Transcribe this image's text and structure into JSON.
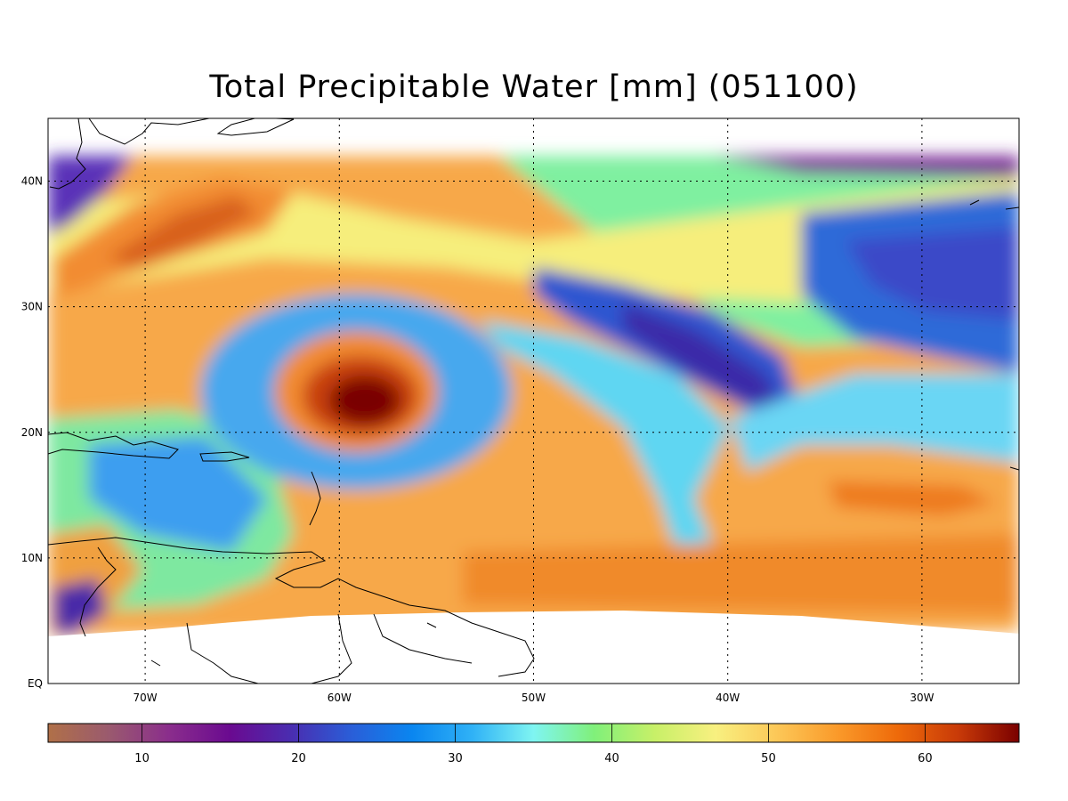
{
  "title": "Total Precipitable Water [mm]  (051100)",
  "map": {
    "lon_range": [
      -75,
      -25
    ],
    "lat_range": [
      0,
      45
    ],
    "lon_ticks": [
      -70,
      -60,
      -50,
      -40,
      -30
    ],
    "lon_tick_labels": [
      "70W",
      "60W",
      "50W",
      "40W",
      "30W"
    ],
    "lat_ticks": [
      0,
      10,
      20,
      30,
      40
    ],
    "lat_tick_labels": [
      "EQ",
      "10N",
      "20N",
      "30N",
      "40N"
    ],
    "data_lat_top": 42,
    "grid": "dotted",
    "features": [
      "hurricane-core-near-59W-22N",
      "dry-band-northeast",
      "moist-tropics-south"
    ]
  },
  "colorbar": {
    "min": 4,
    "max": 66,
    "ticks": [
      10,
      20,
      30,
      40,
      50,
      60
    ],
    "tick_labels": [
      "10",
      "20",
      "30",
      "40",
      "50",
      "60"
    ],
    "colors": [
      "#b07048",
      "#9a5a6e",
      "#8a2d8c",
      "#6a0a90",
      "#4a2db0",
      "#2a5ed8",
      "#0a86f0",
      "#30b2f6",
      "#7ff5f2",
      "#80f07a",
      "#c8f068",
      "#f8f080",
      "#fcc858",
      "#fa9a2a",
      "#ee6a0a",
      "#c83a08",
      "#7a0000"
    ]
  }
}
